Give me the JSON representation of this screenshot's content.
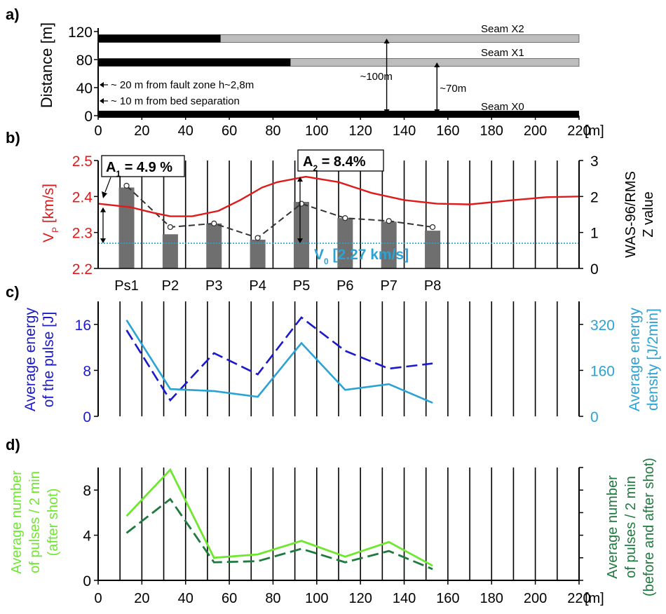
{
  "chart_data": [
    {
      "panel": "a)",
      "type": "diagram",
      "ylabel": "Distance [m]",
      "yticks": [
        0,
        40,
        80,
        120
      ],
      "xticks": [
        0,
        20,
        40,
        60,
        80,
        100,
        120,
        140,
        160,
        180,
        200,
        220
      ],
      "xunit": "[m]",
      "xlim": [
        0,
        220
      ],
      "ylim": [
        0,
        120
      ],
      "seams": [
        {
          "name": "Seam X2",
          "y": 110,
          "mined_to": 56
        },
        {
          "name": "Seam X1",
          "y": 76,
          "mined_to": 88
        },
        {
          "name": "Seam X0",
          "y": 2,
          "mined_to": 220
        }
      ],
      "annotations": [
        {
          "text": "~ 20 m from fault zone  h~2,8m",
          "y": 44
        },
        {
          "text": "~ 10 m from bed separation",
          "y": 21
        },
        {
          "text": "~100m",
          "x": 132,
          "y_from": 2,
          "y_to": 110
        },
        {
          "text": "~70m",
          "x": 155,
          "y_from": 2,
          "y_to": 76
        }
      ]
    },
    {
      "panel": "b)",
      "type": "bar+line",
      "ylabel_left": "V",
      "ylabel_left_sub": "P",
      "ylabel_left_unit": " [km/s]",
      "ylabel_right_1": "WAS-96/RMS",
      "ylabel_right_2": "Z value",
      "ylim_left": [
        2.2,
        2.5
      ],
      "ylim_right": [
        0,
        3
      ],
      "yticks_left": [
        "2.2",
        "2.3",
        "2.4",
        "2.5"
      ],
      "yticks_right": [
        "0",
        "1",
        "2",
        "3"
      ],
      "categories": [
        "Ps1",
        "P2",
        "P3",
        "P4",
        "P5",
        "P6",
        "P7",
        "P8"
      ],
      "category_x": [
        13,
        33,
        53,
        73,
        93,
        113,
        133,
        153
      ],
      "bar_heights": [
        2.25,
        0.95,
        1.25,
        0.8,
        1.85,
        1.4,
        1.3,
        1.05
      ],
      "z_points": [
        2.3,
        1.15,
        1.25,
        0.85,
        1.8,
        1.4,
        1.32,
        1.15
      ],
      "vp_curve": {
        "x": [
          0,
          15,
          25,
          33,
          43,
          55,
          65,
          75,
          82,
          95,
          110,
          125,
          140,
          155,
          170,
          190,
          205,
          220
        ],
        "y": [
          2.38,
          2.37,
          2.355,
          2.345,
          2.345,
          2.36,
          2.39,
          2.425,
          2.44,
          2.455,
          2.44,
          2.41,
          2.39,
          2.38,
          2.378,
          2.39,
          2.398,
          2.4
        ]
      },
      "v0": 2.27,
      "v0_label": "V",
      "v0_sub": "0",
      "v0_value": " [2.27 km/s]",
      "a1_label": "A",
      "a1_sub": "1",
      "a1_value": " = 4.9 %",
      "a2_label": "A",
      "a2_sub": "2",
      "a2_value": " = 8.4%",
      "colors": {
        "vp": "#e01a1a",
        "v0": "#29a3d6",
        "bars": "#6f6f6f"
      }
    },
    {
      "panel": "c)",
      "type": "line",
      "ylabel_left_1": "Average energy",
      "ylabel_left_2": "of the pulse [J]",
      "ylabel_right_1": "Average energy",
      "ylabel_right_2": "density [J/2min]",
      "ylim_left": [
        0,
        20
      ],
      "ylim_right": [
        0,
        400
      ],
      "yticks_left": [
        "0",
        "8",
        "16"
      ],
      "yticks_right": [
        "0",
        "160",
        "320"
      ],
      "x": [
        13,
        33,
        53,
        73,
        93,
        113,
        133,
        153
      ],
      "series": [
        {
          "values": [
            15,
            2.8,
            11,
            7.3,
            17.2,
            11.4,
            8.3,
            9.2
          ],
          "axis": "left",
          "style": "dashed",
          "color": "#1a1acc"
        },
        {
          "values": [
            335,
            95,
            88,
            68,
            255,
            92,
            112,
            47
          ],
          "axis": "right",
          "style": "solid",
          "color": "#29a3d6"
        }
      ]
    },
    {
      "panel": "d)",
      "type": "line",
      "ylabel_left_1": "Average number",
      "ylabel_left_2": "of pulses  / 2 min",
      "ylabel_left_3": "(after shot)",
      "ylabel_right_1": "Average number",
      "ylabel_right_2": "of pulses  / 2 min",
      "ylabel_right_3": "(before and after shot)",
      "ylim": [
        0,
        10
      ],
      "yticks": [
        "0",
        "4",
        "8"
      ],
      "xticks": [
        0,
        20,
        40,
        60,
        80,
        100,
        120,
        140,
        160,
        180,
        200,
        220
      ],
      "xunit": "[m]",
      "x": [
        13,
        33,
        53,
        73,
        93,
        113,
        133,
        153
      ],
      "series": [
        {
          "values": [
            5.7,
            9.8,
            2.0,
            2.3,
            3.5,
            2.1,
            3.4,
            1.3
          ],
          "style": "solid",
          "color": "#6ee82e"
        },
        {
          "values": [
            4.2,
            7.2,
            1.6,
            1.7,
            2.8,
            1.6,
            2.6,
            1.0
          ],
          "style": "dashed",
          "color": "#1e7a3e"
        }
      ]
    }
  ]
}
